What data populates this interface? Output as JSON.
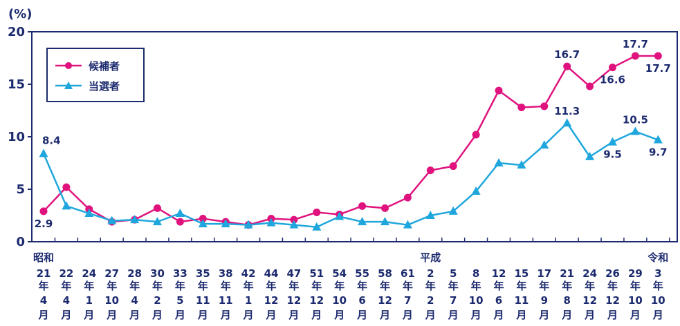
{
  "chart_data": {
    "type": "line",
    "unit": "(%)",
    "ylim": [
      0,
      20
    ],
    "yticks": [
      0,
      5,
      10,
      15,
      20
    ],
    "grid": false,
    "legend_position": "top-left",
    "colors": {
      "candidates": "#e0137e",
      "elected": "#1fa7dd",
      "axis": "#1c2a6e",
      "text": "#1c2a6e"
    },
    "eras": [
      {
        "label": "昭和",
        "index": 0
      },
      {
        "label": "平成",
        "index": 17
      },
      {
        "label": "令和",
        "index": 27
      }
    ],
    "categories": [
      {
        "year": "21",
        "month": "4"
      },
      {
        "year": "22",
        "month": "4"
      },
      {
        "year": "24",
        "month": "1"
      },
      {
        "year": "27",
        "month": "10"
      },
      {
        "year": "28",
        "month": "4"
      },
      {
        "year": "30",
        "month": "2"
      },
      {
        "year": "33",
        "month": "5"
      },
      {
        "year": "35",
        "month": "11"
      },
      {
        "year": "38",
        "month": "11"
      },
      {
        "year": "42",
        "month": "1"
      },
      {
        "year": "44",
        "month": "12"
      },
      {
        "year": "47",
        "month": "12"
      },
      {
        "year": "51",
        "month": "12"
      },
      {
        "year": "54",
        "month": "10"
      },
      {
        "year": "55",
        "month": "6"
      },
      {
        "year": "58",
        "month": "12"
      },
      {
        "year": "61",
        "month": "7"
      },
      {
        "year": "2",
        "month": "2"
      },
      {
        "year": "5",
        "month": "7"
      },
      {
        "year": "8",
        "month": "10"
      },
      {
        "year": "12",
        "month": "6"
      },
      {
        "year": "15",
        "month": "11"
      },
      {
        "year": "17",
        "month": "9"
      },
      {
        "year": "21",
        "month": "8"
      },
      {
        "year": "24",
        "month": "12"
      },
      {
        "year": "26",
        "month": "12"
      },
      {
        "year": "29",
        "month": "10"
      },
      {
        "year": "3",
        "month": "10"
      }
    ],
    "year_suffix": "年",
    "month_suffix": "月",
    "series": [
      {
        "name": "候補者",
        "key": "candidates",
        "marker": "circle",
        "values": [
          2.9,
          5.2,
          3.1,
          1.9,
          2.1,
          3.2,
          1.9,
          2.2,
          1.9,
          1.6,
          2.2,
          2.1,
          2.8,
          2.6,
          3.4,
          3.2,
          4.2,
          6.8,
          7.2,
          10.2,
          14.4,
          12.8,
          12.9,
          16.7,
          14.8,
          16.6,
          17.7,
          17.7
        ],
        "annotations": [
          {
            "index": 0,
            "text": "2.9",
            "pos": "below"
          },
          {
            "index": 23,
            "text": "16.7",
            "pos": "above"
          },
          {
            "index": 25,
            "text": "16.6",
            "pos": "below"
          },
          {
            "index": 26,
            "text": "17.7",
            "pos": "above"
          },
          {
            "index": 27,
            "text": "17.7",
            "pos": "below"
          }
        ]
      },
      {
        "name": "当選者",
        "key": "elected",
        "marker": "triangle",
        "values": [
          8.4,
          3.4,
          2.7,
          2.0,
          2.1,
          1.9,
          2.7,
          1.7,
          1.7,
          1.6,
          1.8,
          1.6,
          1.4,
          2.4,
          1.9,
          1.9,
          1.6,
          2.5,
          2.9,
          4.8,
          7.5,
          7.3,
          9.2,
          11.3,
          8.1,
          9.5,
          10.5,
          9.7
        ],
        "annotations": [
          {
            "index": 0,
            "text": "8.4",
            "pos": "above-right"
          },
          {
            "index": 23,
            "text": "11.3",
            "pos": "above"
          },
          {
            "index": 25,
            "text": "9.5",
            "pos": "below"
          },
          {
            "index": 26,
            "text": "10.5",
            "pos": "above"
          },
          {
            "index": 27,
            "text": "9.7",
            "pos": "below"
          }
        ]
      }
    ]
  }
}
